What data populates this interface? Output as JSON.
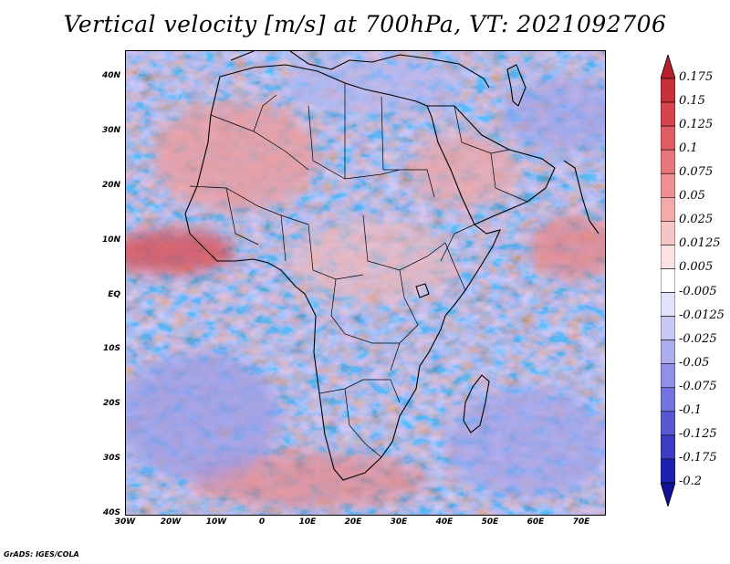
{
  "title": "Vertical velocity [m/s] at 700hPa, VT: 2021092706",
  "credit": "GrADS: IGES/COLA",
  "map": {
    "region": "Africa and surrounding oceans",
    "lat_labels": [
      "40N",
      "30N",
      "20N",
      "10N",
      "EQ",
      "10S",
      "20S",
      "30S",
      "40S"
    ],
    "lon_labels": [
      "30W",
      "20W",
      "10W",
      "0",
      "10E",
      "20E",
      "30E",
      "40E",
      "50E",
      "60E",
      "70E"
    ],
    "lat_range": [
      -40,
      45
    ],
    "lon_range": [
      -30,
      75
    ]
  },
  "colorbar": {
    "labels": [
      "0.175",
      "0.15",
      "0.125",
      "0.1",
      "0.075",
      "0.05",
      "0.025",
      "0.0125",
      "0.005",
      "-0.005",
      "-0.0125",
      "-0.025",
      "-0.05",
      "-0.075",
      "-0.1",
      "-0.125",
      "-0.175",
      "-0.2"
    ],
    "colors": [
      "#b8202a",
      "#c8303a",
      "#d8444e",
      "#e05c62",
      "#e8767a",
      "#ee9092",
      "#f2aaab",
      "#f6c6c6",
      "#fae2e2",
      "#ffffff",
      "#e2e2fa",
      "#c8c8f4",
      "#acacee",
      "#9090e6",
      "#7474de",
      "#5858d2",
      "#3c3cc4",
      "#2020b0",
      "#10109a"
    ]
  }
}
